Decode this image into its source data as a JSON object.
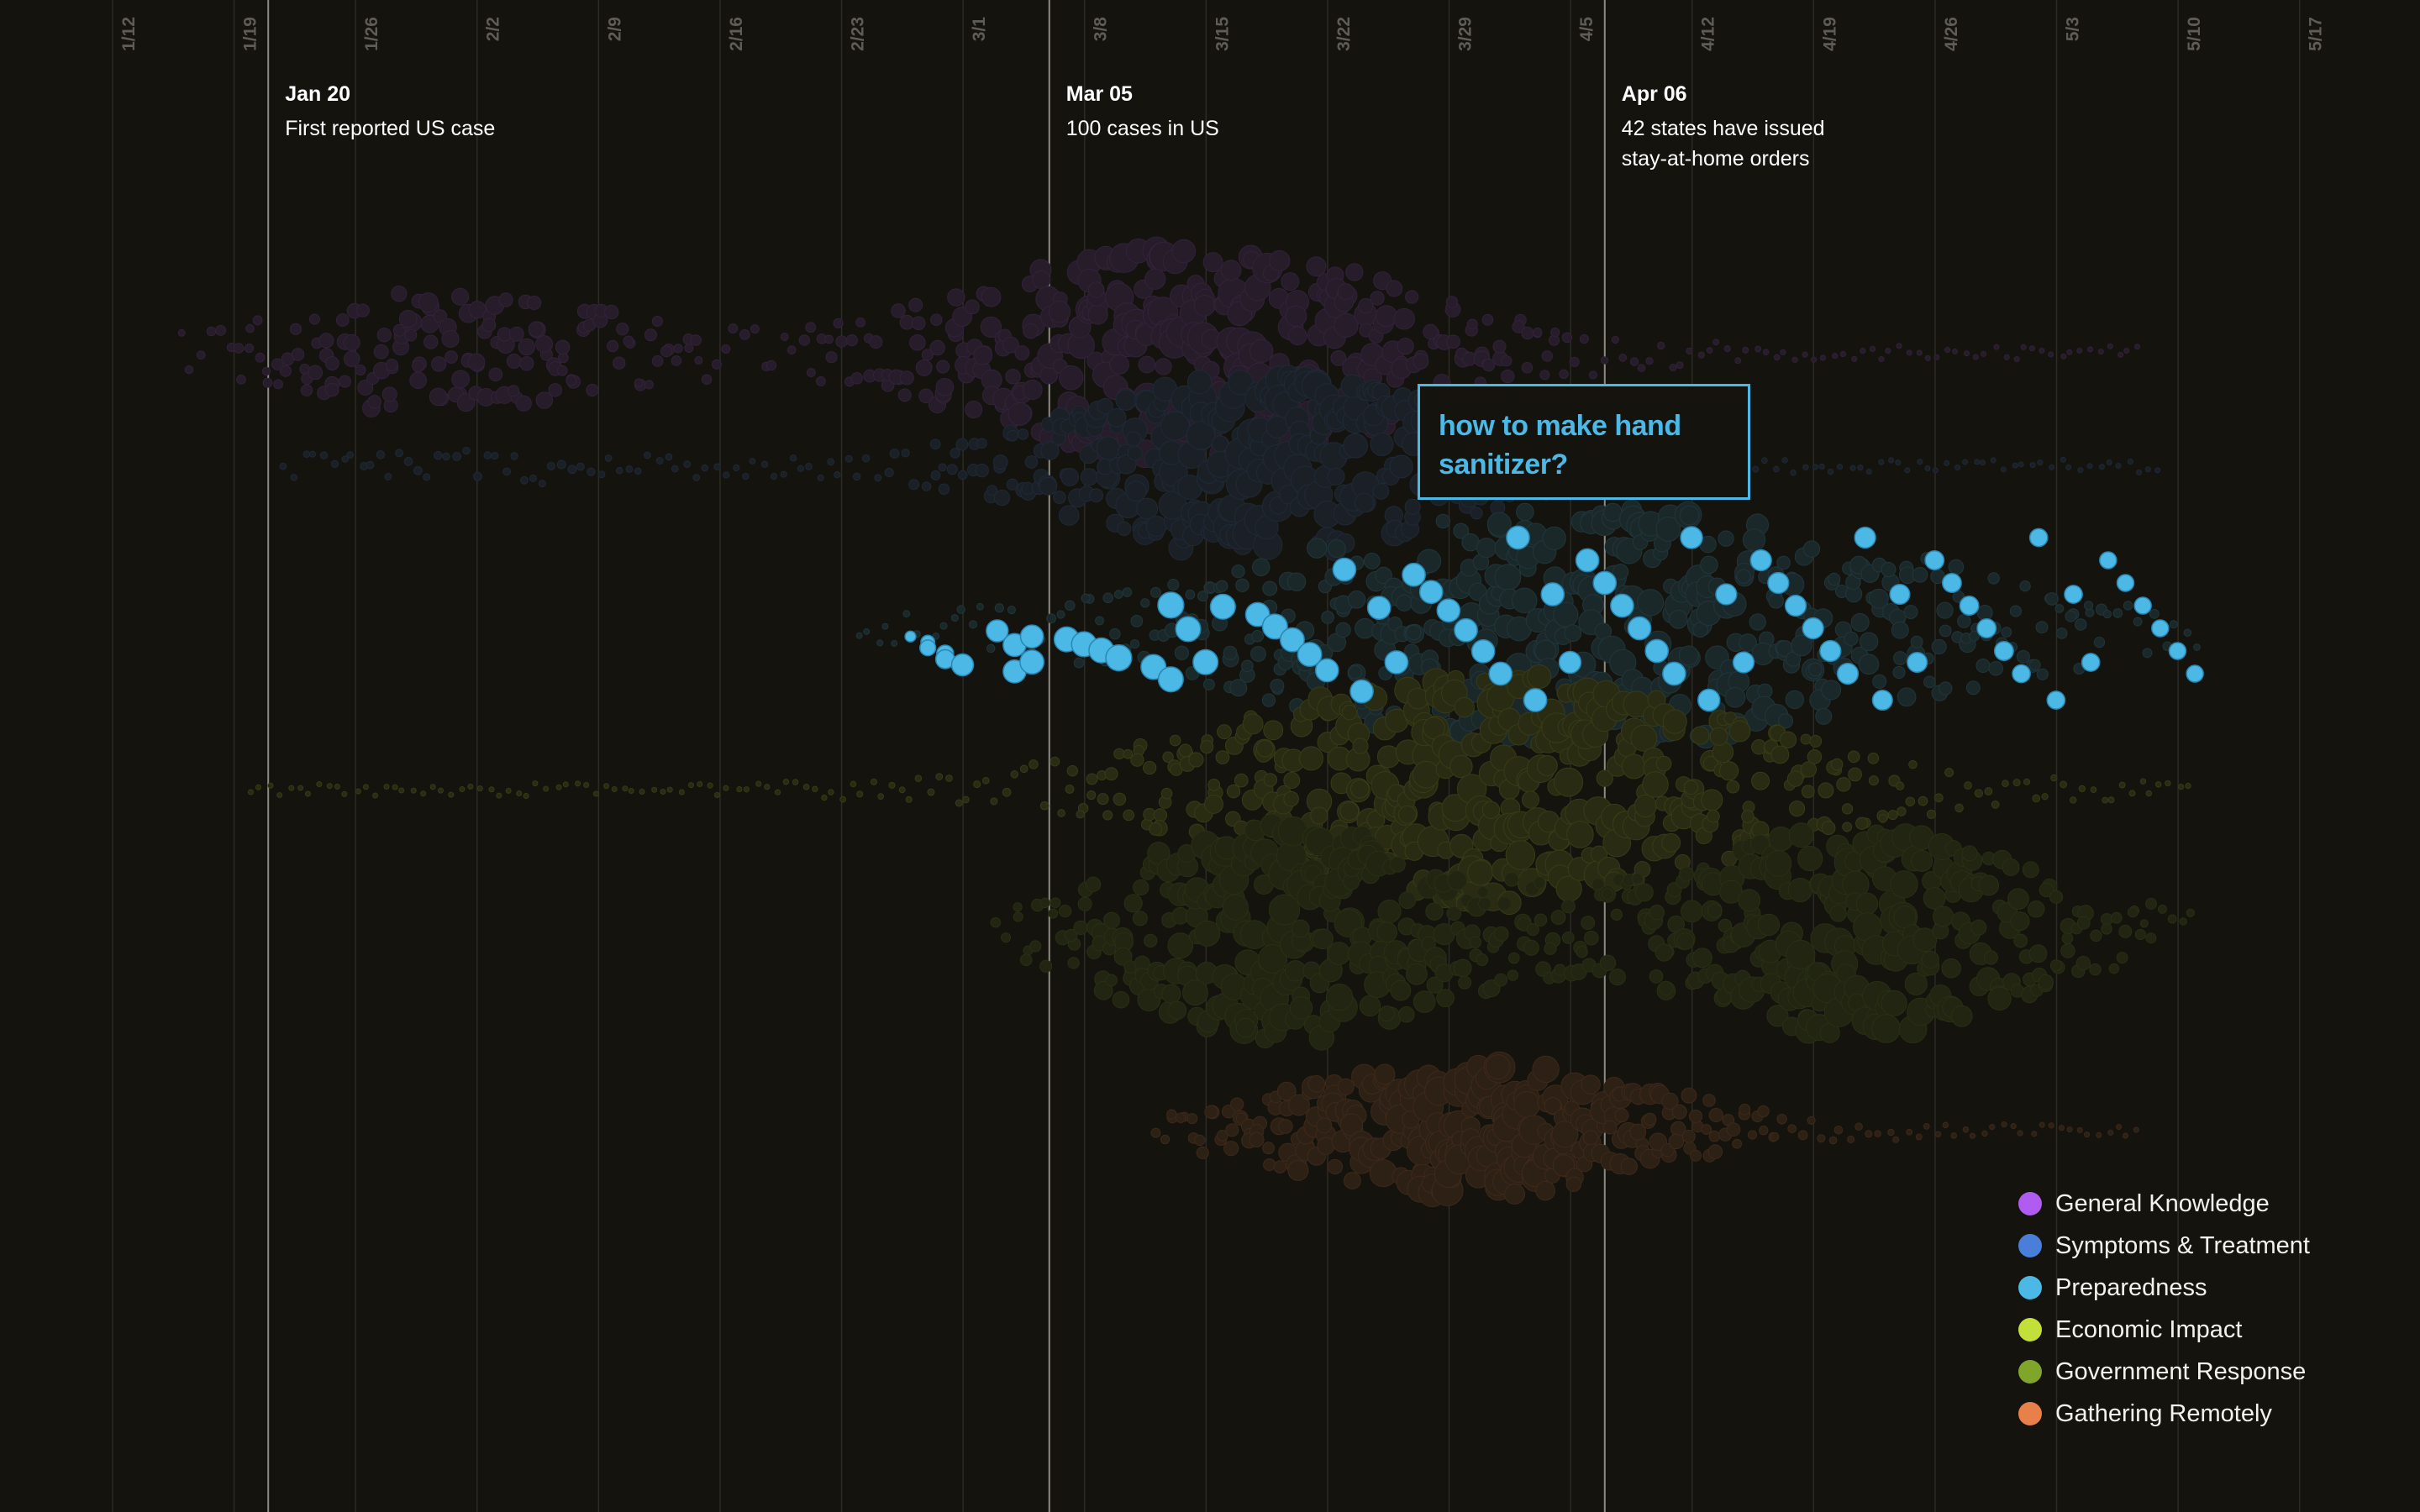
{
  "chart_data": {
    "type": "scatter",
    "subtype": "beeswarm",
    "x_axis": {
      "type": "date",
      "year": 2020,
      "range": [
        "2020-01-06",
        "2020-05-22"
      ],
      "tick_dates": [
        "2020-01-12",
        "2020-01-19",
        "2020-01-26",
        "2020-02-02",
        "2020-02-09",
        "2020-02-16",
        "2020-02-23",
        "2020-03-01",
        "2020-03-08",
        "2020-03-15",
        "2020-03-22",
        "2020-03-29",
        "2020-04-05",
        "2020-04-12",
        "2020-04-19",
        "2020-04-26",
        "2020-05-03",
        "2020-05-10",
        "2020-05-17"
      ],
      "tick_labels": [
        "1/12",
        "1/19",
        "1/26",
        "2/2",
        "2/9",
        "2/16",
        "2/23",
        "3/1",
        "3/8",
        "3/15",
        "3/22",
        "3/29",
        "4/5",
        "4/12",
        "4/19",
        "4/26",
        "5/3",
        "5/10",
        "5/17"
      ]
    },
    "grid": true,
    "legend_position": "bottom-right",
    "annotations": [
      {
        "date": "2020-01-20",
        "label": "Jan 20",
        "text": [
          "First reported US case"
        ]
      },
      {
        "date": "2020-03-05",
        "label": "Mar 05",
        "text": [
          "100 cases in US"
        ]
      },
      {
        "date": "2020-04-06",
        "label": "Apr 06",
        "text": [
          "42 states have issued",
          "stay-at-home orders"
        ]
      }
    ],
    "highlighted_series": "Preparedness",
    "highlighted_query": "how to make hand sanitizer?",
    "series": [
      {
        "name": "General Knowledge",
        "color": "#b15cf0",
        "highlighted": false,
        "band_start": "2020-01-15",
        "band_end": "2020-05-07",
        "peaks": [
          {
            "date": "2020-01-30",
            "spread": 9,
            "weight": 0.55
          },
          {
            "date": "2020-03-13",
            "spread": 12,
            "weight": 1.0
          }
        ]
      },
      {
        "name": "Symptoms & Treatment",
        "color": "#4a7fd9",
        "highlighted": false,
        "band_start": "2020-01-21",
        "band_end": "2020-05-08",
        "peaks": [
          {
            "date": "2020-03-17",
            "spread": 11,
            "weight": 1.0
          },
          {
            "date": "2020-02-01",
            "spread": 8,
            "weight": 0.15
          }
        ]
      },
      {
        "name": "Preparedness",
        "color": "#4cb8e6",
        "highlighted": true,
        "band_start": "2020-02-23",
        "band_end": "2020-05-10",
        "peaks": [
          {
            "date": "2020-04-05",
            "spread": 18,
            "weight": 1.0
          }
        ]
      },
      {
        "name": "Economic Impact",
        "color": "#c2df3a",
        "highlighted": false,
        "band_start": "2020-01-19",
        "band_end": "2020-05-10",
        "peaks": [
          {
            "date": "2020-03-30",
            "spread": 14,
            "weight": 1.0
          }
        ]
      },
      {
        "name": "Government Response",
        "color": "#7fa62a",
        "highlighted": false,
        "band_start": "2020-03-02",
        "band_end": "2020-05-10",
        "peaks": [
          {
            "date": "2020-03-18",
            "spread": 9,
            "weight": 1.0
          },
          {
            "date": "2020-04-20",
            "spread": 10,
            "weight": 0.95
          }
        ]
      },
      {
        "name": "Gathering Remotely",
        "color": "#e8804a",
        "highlighted": false,
        "band_start": "2020-03-11",
        "band_end": "2020-05-07",
        "peaks": [
          {
            "date": "2020-03-29",
            "spread": 10,
            "weight": 1.0
          }
        ]
      }
    ],
    "highlighted_points": [
      {
        "date": "2020-02-26",
        "size": 0.2
      },
      {
        "date": "2020-02-27",
        "size": 0.35
      },
      {
        "date": "2020-02-27",
        "size": 0.45
      },
      {
        "date": "2020-02-28",
        "size": 0.5
      },
      {
        "date": "2020-02-28",
        "size": 0.6
      },
      {
        "date": "2020-02-29",
        "size": 0.75
      },
      {
        "date": "2020-03-02",
        "size": 0.75
      },
      {
        "date": "2020-03-03",
        "size": 0.8
      },
      {
        "date": "2020-03-03",
        "size": 0.8
      },
      {
        "date": "2020-03-04",
        "size": 0.85
      },
      {
        "date": "2020-03-04",
        "size": 0.8
      },
      {
        "date": "2020-03-06",
        "size": 0.9
      },
      {
        "date": "2020-03-07",
        "size": 0.9
      },
      {
        "date": "2020-03-08",
        "size": 0.9
      },
      {
        "date": "2020-03-09",
        "size": 0.95
      },
      {
        "date": "2020-03-11",
        "size": 0.9
      },
      {
        "date": "2020-03-12",
        "size": 0.95
      },
      {
        "date": "2020-03-12",
        "size": 0.9
      },
      {
        "date": "2020-03-13",
        "size": 0.9
      },
      {
        "date": "2020-03-14",
        "size": 0.9
      },
      {
        "date": "2020-03-15",
        "size": 0.9
      },
      {
        "date": "2020-03-17",
        "size": 0.85
      },
      {
        "date": "2020-03-18",
        "size": 0.9
      },
      {
        "date": "2020-03-19",
        "size": 0.85
      },
      {
        "date": "2020-03-20",
        "size": 0.85
      },
      {
        "date": "2020-03-21",
        "size": 0.8
      },
      {
        "date": "2020-03-22",
        "size": 0.8
      },
      {
        "date": "2020-03-23",
        "size": 0.8
      },
      {
        "date": "2020-03-24",
        "size": 0.8
      },
      {
        "date": "2020-03-25",
        "size": 0.8
      },
      {
        "date": "2020-03-26",
        "size": 0.8
      },
      {
        "date": "2020-03-27",
        "size": 0.8
      },
      {
        "date": "2020-03-28",
        "size": 0.8
      },
      {
        "date": "2020-03-29",
        "size": 0.8
      },
      {
        "date": "2020-03-30",
        "size": 0.8
      },
      {
        "date": "2020-03-31",
        "size": 0.8
      },
      {
        "date": "2020-04-01",
        "size": 0.8
      },
      {
        "date": "2020-04-02",
        "size": 0.8
      },
      {
        "date": "2020-04-03",
        "size": 0.8
      },
      {
        "date": "2020-04-04",
        "size": 0.75
      },
      {
        "date": "2020-04-05",
        "size": 0.8
      },
      {
        "date": "2020-04-06",
        "size": 0.8
      },
      {
        "date": "2020-04-07",
        "size": 0.8
      },
      {
        "date": "2020-04-08",
        "size": 0.8
      },
      {
        "date": "2020-04-09",
        "size": 0.8
      },
      {
        "date": "2020-04-10",
        "size": 0.8
      },
      {
        "date": "2020-04-11",
        "size": 0.75
      },
      {
        "date": "2020-04-12",
        "size": 0.75
      },
      {
        "date": "2020-04-13",
        "size": 0.7
      },
      {
        "date": "2020-04-14",
        "size": 0.7
      },
      {
        "date": "2020-04-15",
        "size": 0.7
      },
      {
        "date": "2020-04-16",
        "size": 0.7
      },
      {
        "date": "2020-04-17",
        "size": 0.7
      },
      {
        "date": "2020-04-18",
        "size": 0.7
      },
      {
        "date": "2020-04-19",
        "size": 0.7
      },
      {
        "date": "2020-04-20",
        "size": 0.7
      },
      {
        "date": "2020-04-21",
        "size": 0.7
      },
      {
        "date": "2020-04-22",
        "size": 0.65
      },
      {
        "date": "2020-04-23",
        "size": 0.65
      },
      {
        "date": "2020-04-24",
        "size": 0.65
      },
      {
        "date": "2020-04-25",
        "size": 0.6
      },
      {
        "date": "2020-04-26",
        "size": 0.6
      },
      {
        "date": "2020-04-27",
        "size": 0.6
      },
      {
        "date": "2020-04-28",
        "size": 0.6
      },
      {
        "date": "2020-04-29",
        "size": 0.6
      },
      {
        "date": "2020-04-30",
        "size": 0.55
      },
      {
        "date": "2020-05-01",
        "size": 0.55
      },
      {
        "date": "2020-05-02",
        "size": 0.55
      },
      {
        "date": "2020-05-03",
        "size": 0.55
      },
      {
        "date": "2020-05-04",
        "size": 0.55
      },
      {
        "date": "2020-05-05",
        "size": 0.5
      },
      {
        "date": "2020-05-06",
        "size": 0.5
      },
      {
        "date": "2020-05-07",
        "size": 0.5
      },
      {
        "date": "2020-05-08",
        "size": 0.5
      },
      {
        "date": "2020-05-09",
        "size": 0.5
      },
      {
        "date": "2020-05-10",
        "size": 0.5
      }
    ]
  }
}
